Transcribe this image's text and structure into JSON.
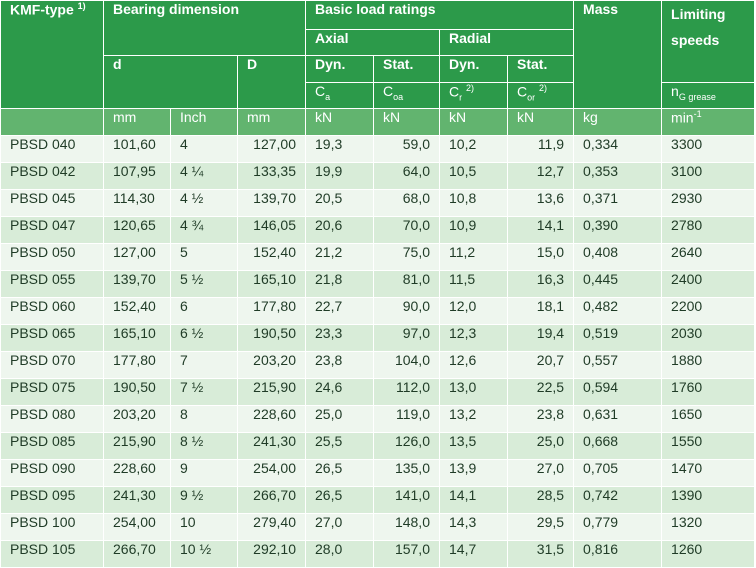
{
  "header": {
    "kmf_type": "KMF-type",
    "kmf_sup": "1)",
    "bearing_dimension": "Bearing dimension",
    "basic_load_ratings": "Basic load ratings",
    "mass": "Mass",
    "limiting_speeds": "Limiting speeds",
    "axial": "Axial",
    "radial": "Radial",
    "d": "d",
    "D": "D",
    "dyn": "Dyn.",
    "stat": "Stat.",
    "ca": "C",
    "ca_sub": "a",
    "coa": "C",
    "coa_sub": "oa",
    "cr": "C",
    "cr_sub": "r",
    "cr_sup": "2)",
    "cor": "C",
    "cor_sub": "or",
    "cor_sup": "2)",
    "ng": "n",
    "ng_sub": "G grease"
  },
  "units": [
    "mm",
    "Inch",
    "mm",
    "kN",
    "kN",
    "kN",
    "kN",
    "kg",
    "min-1"
  ],
  "units_minute": "min",
  "units_minute_sup": "-1",
  "rows": [
    [
      "PBSD  040",
      "101,60",
      "4",
      "127,00",
      "19,3",
      "59,0",
      "10,2",
      "11,9",
      "0,334",
      "3300"
    ],
    [
      "PBSD  042",
      "107,95",
      "4 ¼",
      "133,35",
      "19,9",
      "64,0",
      "10,5",
      "12,7",
      "0,353",
      "3100"
    ],
    [
      "PBSD  045",
      "114,30",
      "4 ½",
      "139,70",
      "20,5",
      "68,0",
      "10,8",
      "13,6",
      "0,371",
      "2930"
    ],
    [
      "PBSD  047",
      "120,65",
      "4 ¾",
      "146,05",
      "20,6",
      "70,0",
      "10,9",
      "14,1",
      "0,390",
      "2780"
    ],
    [
      "PBSD  050",
      "127,00",
      "5",
      "152,40",
      "21,2",
      "75,0",
      "11,2",
      "15,0",
      "0,408",
      "2640"
    ],
    [
      "PBSD  055",
      "139,70",
      "5 ½",
      "165,10",
      "21,8",
      "81,0",
      "11,5",
      "16,3",
      "0,445",
      "2400"
    ],
    [
      "PBSD  060",
      "152,40",
      "6",
      "177,80",
      "22,7",
      "90,0",
      "12,0",
      "18,1",
      "0,482",
      "2200"
    ],
    [
      "PBSD  065",
      "165,10",
      "6 ½",
      "190,50",
      "23,3",
      "97,0",
      "12,3",
      "19,4",
      "0,519",
      "2030"
    ],
    [
      "PBSD  070",
      "177,80",
      "7",
      "203,20",
      "23,8",
      "104,0",
      "12,6",
      "20,7",
      "0,557",
      "1880"
    ],
    [
      "PBSD  075",
      "190,50",
      "7 ½",
      "215,90",
      "24,6",
      "112,0",
      "13,0",
      "22,5",
      "0,594",
      "1760"
    ],
    [
      "PBSD  080",
      "203,20",
      "8",
      "228,60",
      "25,0",
      "119,0",
      "13,2",
      "23,8",
      "0,631",
      "1650"
    ],
    [
      "PBSD  085",
      "215,90",
      "8 ½",
      "241,30",
      "25,5",
      "126,0",
      "13,5",
      "25,0",
      "0,668",
      "1550"
    ],
    [
      "PBSD  090",
      "228,60",
      "9",
      "254,00",
      "26,5",
      "135,0",
      "13,9",
      "27,0",
      "0,705",
      "1470"
    ],
    [
      "PBSD  095",
      "241,30",
      "9 ½",
      "266,70",
      "26,5",
      "141,0",
      "14,1",
      "28,5",
      "0,742",
      "1390"
    ],
    [
      "PBSD  100",
      "254,00",
      "10",
      "279,40",
      "27,0",
      "148,0",
      "14,3",
      "29,5",
      "0,779",
      "1320"
    ],
    [
      "PBSD  105",
      "266,70",
      "10 ½",
      "292,10",
      "28,0",
      "157,0",
      "14,7",
      "31,5",
      "0,816",
      "1260"
    ]
  ],
  "colors": {
    "header": "#2c9a4a",
    "units_row": "#62b46f",
    "row_light": "#eef6ee",
    "row_dark": "#d8ecd8",
    "text": "#1f3b26"
  }
}
